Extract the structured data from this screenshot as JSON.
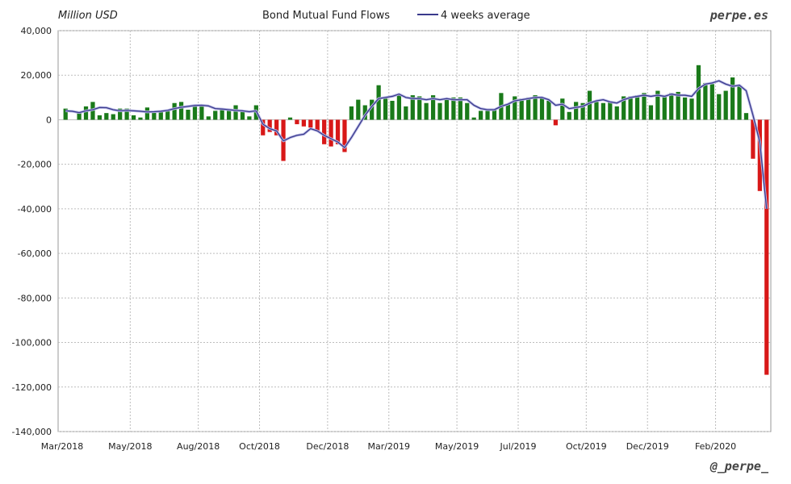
{
  "header": {
    "unit_label": "Million USD",
    "title": "Bond Mutual Fund Flows",
    "legend_label": "4 weeks average",
    "brand": "perpe.es",
    "handle": "@_perpe_"
  },
  "colors": {
    "positive_bar": "#1a7a1a",
    "negative_bar": "#d81818",
    "average_line": "#3a3a8c",
    "grid": "#bdbdbd"
  },
  "chart_data": {
    "type": "bar",
    "title": "Bond Mutual Fund Flows",
    "ylabel": "Million USD",
    "ylim": [
      -140000,
      40000
    ],
    "y_ticks": [
      "40,000",
      "20,000",
      "0",
      "-20,000",
      "-40,000",
      "-60,000",
      "-80,000",
      "-100,000",
      "-120,000",
      "-140,000"
    ],
    "y_tick_values": [
      40000,
      20000,
      0,
      -20000,
      -40000,
      -60000,
      -80000,
      -100000,
      -120000,
      -140000
    ],
    "x_ticks": [
      "Mar/2018",
      "May/2018",
      "Aug/2018",
      "Oct/2018",
      "Dec/2018",
      "Mar/2019",
      "May/2019",
      "Jul/2019",
      "Oct/2019",
      "Dec/2019",
      "Feb/2020"
    ],
    "grid": true,
    "legend_position": "top-center",
    "series": [
      {
        "name": "Bond Mutual Fund Flows",
        "kind": "bar",
        "values": [
          5000,
          0,
          3000,
          6000,
          8000,
          2000,
          3000,
          2500,
          5000,
          5000,
          2000,
          1000,
          5500,
          4000,
          3500,
          4500,
          7500,
          8000,
          4500,
          6000,
          6500,
          1500,
          4000,
          4500,
          4000,
          6500,
          4000,
          1500,
          6500,
          -7000,
          -5500,
          -7000,
          -18500,
          1000,
          -2000,
          -3000,
          -3500,
          -5000,
          -11000,
          -12000,
          -11000,
          -14500,
          6000,
          9000,
          6500,
          9000,
          15500,
          9500,
          8500,
          11000,
          6000,
          11000,
          10500,
          7500,
          11000,
          7500,
          9000,
          10000,
          10000,
          7500,
          1000,
          4000,
          4000,
          4500,
          12000,
          7000,
          10500,
          9500,
          10000,
          11000,
          10000,
          8500,
          -2500,
          9500,
          3500,
          8000,
          7500,
          13000,
          8000,
          7500,
          8500,
          6000,
          10500,
          10500,
          11000,
          12000,
          6500,
          13000,
          10500,
          12000,
          12500,
          10000,
          9500,
          24500,
          16500,
          16000,
          11500,
          13000,
          19000,
          15500,
          3000,
          -17500,
          -32000,
          -114500
        ]
      },
      {
        "name": "4 weeks average",
        "kind": "line",
        "values": [
          4000,
          3800,
          3200,
          4000,
          4500,
          5500,
          5400,
          4500,
          4000,
          4200,
          4000,
          3800,
          3500,
          3600,
          3800,
          4200,
          5000,
          5600,
          6000,
          6400,
          6500,
          6200,
          5000,
          4800,
          4500,
          4200,
          4000,
          3600,
          4000,
          -2000,
          -4000,
          -5000,
          -9500,
          -8000,
          -7000,
          -6500,
          -4000,
          -5000,
          -7000,
          -8500,
          -10000,
          -12500,
          -8000,
          -3000,
          2000,
          6000,
          9500,
          10000,
          10500,
          11500,
          10000,
          9500,
          9500,
          9000,
          9500,
          9000,
          9500,
          9000,
          9000,
          9000,
          6500,
          5000,
          4500,
          4500,
          6000,
          7000,
          8500,
          9000,
          9500,
          10000,
          10000,
          9000,
          6500,
          7000,
          5000,
          5500,
          6000,
          7500,
          8500,
          9000,
          8000,
          7500,
          9000,
          10000,
          10500,
          11000,
          10500,
          11000,
          10500,
          11500,
          11000,
          11000,
          10500,
          14000,
          16000,
          16500,
          17500,
          16000,
          15000,
          15500,
          13000,
          2000,
          -10000,
          -40000
        ]
      }
    ]
  }
}
